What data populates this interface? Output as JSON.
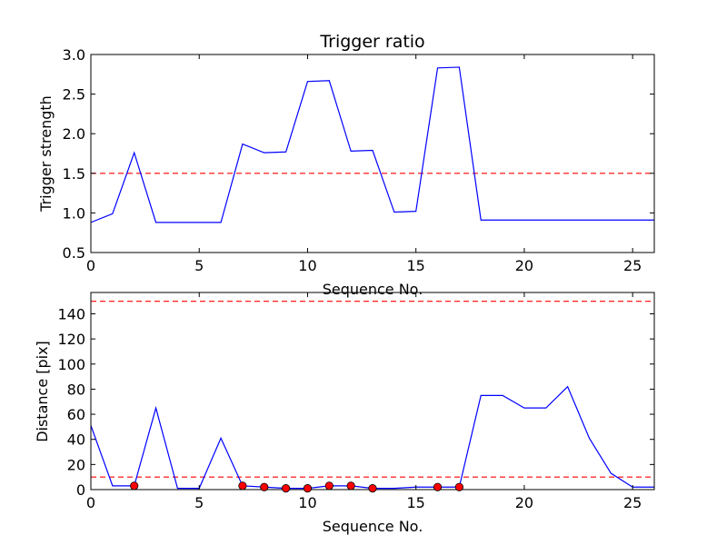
{
  "chart_data": [
    {
      "type": "line",
      "title": "Trigger ratio",
      "xlabel": "Sequence No.",
      "ylabel": "Trigger strength",
      "xlim": [
        0,
        26
      ],
      "ylim": [
        0.5,
        3.0
      ],
      "xticks": [
        "0",
        "5",
        "10",
        "15",
        "20",
        "25"
      ],
      "yticks": [
        "0.5",
        "1.0",
        "1.5",
        "2.0",
        "2.5",
        "3.0"
      ],
      "grid": false,
      "series": [
        {
          "color": "#0000ff",
          "x": [
            0,
            1,
            2,
            3,
            4,
            5,
            6,
            7,
            8,
            9,
            10,
            11,
            12,
            13,
            14,
            15,
            16,
            17,
            18,
            19,
            20,
            21,
            22,
            23,
            24,
            25,
            26
          ],
          "values": [
            0.88,
            0.99,
            1.76,
            0.88,
            0.88,
            0.88,
            0.88,
            1.87,
            1.76,
            1.77,
            2.66,
            2.67,
            1.78,
            1.79,
            1.01,
            1.02,
            2.83,
            2.84,
            0.91,
            0.91,
            0.91,
            0.91,
            0.91,
            0.91,
            0.91,
            0.91,
            0.91
          ]
        }
      ],
      "hlines": [
        {
          "y": 1.5,
          "color": "#ff0000",
          "style": "dashed"
        }
      ]
    },
    {
      "type": "line",
      "title": "",
      "xlabel": "Sequence No.",
      "ylabel": "Distance [pix]",
      "xlim": [
        0,
        26
      ],
      "ylim": [
        0,
        157
      ],
      "xticks": [
        "0",
        "5",
        "10",
        "15",
        "20",
        "25"
      ],
      "yticks": [
        "0",
        "20",
        "40",
        "60",
        "80",
        "100",
        "120",
        "140"
      ],
      "grid": false,
      "series": [
        {
          "color": "#0000ff",
          "x": [
            0,
            1,
            2,
            3,
            4,
            5,
            6,
            7,
            8,
            9,
            10,
            11,
            12,
            13,
            14,
            15,
            16,
            17,
            18,
            19,
            20,
            21,
            22,
            23,
            24,
            25,
            26
          ],
          "values": [
            51,
            3,
            3,
            65,
            1,
            1,
            41,
            3,
            2,
            1,
            1,
            3,
            3,
            1,
            1,
            2,
            2,
            2,
            75,
            75,
            65,
            65,
            82,
            41,
            13,
            2,
            2
          ]
        },
        {
          "color": "#ff0000",
          "marker": "circle",
          "x": [
            2,
            7,
            8,
            9,
            10,
            11,
            12,
            13,
            16,
            17
          ],
          "values": [
            3,
            3,
            2,
            1,
            1,
            3,
            3,
            1,
            2,
            2
          ]
        }
      ],
      "hlines": [
        {
          "y": 150,
          "color": "#ff0000",
          "style": "dashed"
        },
        {
          "y": 10,
          "color": "#ff0000",
          "style": "dashed"
        }
      ]
    }
  ]
}
